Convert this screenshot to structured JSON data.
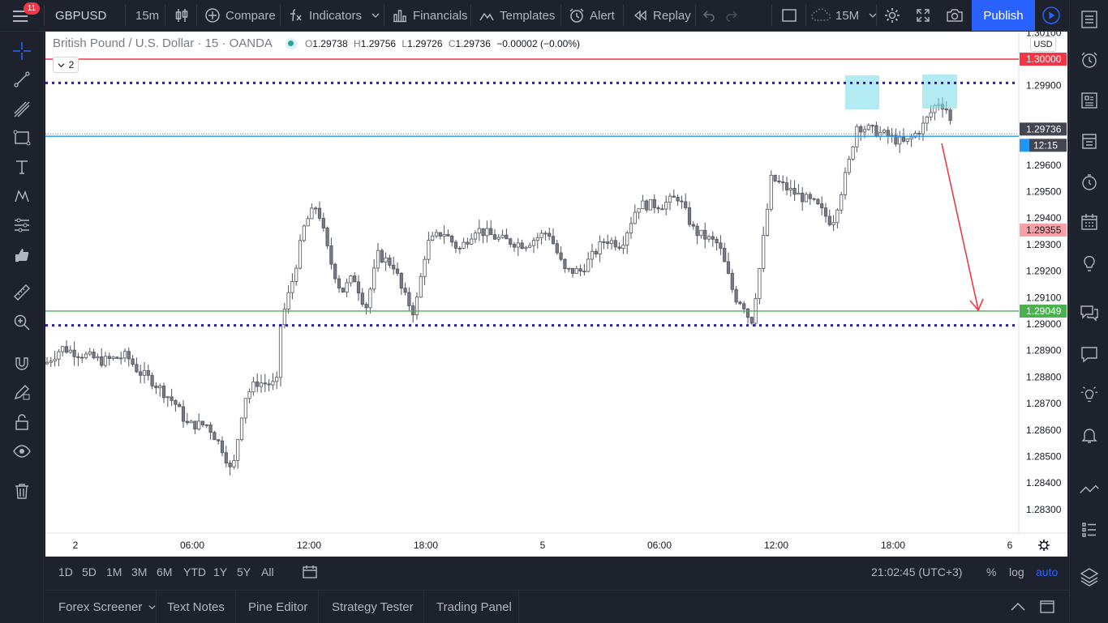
{
  "toolbar": {
    "notification_count": "11",
    "symbol": "GBPUSD",
    "interval": "15m",
    "compare": "Compare",
    "indicators": "Indicators",
    "financials": "Financials",
    "templates": "Templates",
    "alert": "Alert",
    "replay": "Replay",
    "chart_interval": "15M",
    "publish": "Publish"
  },
  "legend": {
    "title": "British Pound / U.S. Dollar · 15 · OANDA",
    "o_key": "O",
    "o": "1.29738",
    "h_key": "H",
    "h": "1.29756",
    "l_key": "L",
    "l": "1.29726",
    "c_key": "C",
    "c": "1.29736",
    "change": "−0.00002 (−0.00%)",
    "collapsed_count": "2"
  },
  "chart_data": {
    "type": "candlestick",
    "currency": "USD",
    "price_ticks": [
      "1.30100",
      "1.29900",
      "1.29600",
      "1.29500",
      "1.29400",
      "1.29300",
      "1.29200",
      "1.29100",
      "1.29000",
      "1.28900",
      "1.28800",
      "1.28700",
      "1.28600",
      "1.28500",
      "1.28400",
      "1.28300"
    ],
    "time_ticks": [
      "2",
      "06:00",
      "12:00",
      "18:00",
      "5",
      "06:00",
      "12:00",
      "18:00",
      "6"
    ],
    "price_labels": {
      "resistance": "1.30000",
      "last": "1.29736",
      "countdown": "12:15",
      "marker": "1.29355",
      "support": "1.29049"
    },
    "levels": [
      {
        "name": "resistance-line",
        "price": 1.3,
        "color": "#f23645"
      },
      {
        "name": "top-dotted-line",
        "price": 1.2991,
        "color": "#311b92"
      },
      {
        "name": "support-line",
        "price": 1.29049,
        "color": "#4caf50"
      },
      {
        "name": "bottom-dotted-line",
        "price": 1.28995,
        "color": "#311b92"
      }
    ]
  },
  "bottom": {
    "ranges": [
      "1D",
      "5D",
      "1M",
      "3M",
      "6M",
      "YTD",
      "1Y",
      "5Y",
      "All"
    ],
    "time": "21:02:45 (UTC+3)",
    "percent": "%",
    "log": "log",
    "auto": "auto"
  },
  "panels": {
    "forex_screener": "Forex Screener",
    "text_notes": "Text Notes",
    "pine_editor": "Pine Editor",
    "strategy_tester": "Strategy Tester",
    "trading_panel": "Trading Panel"
  },
  "colors": {
    "accent": "#2962ff",
    "up": "#ffffff",
    "down": "#787b86",
    "red": "#f23645",
    "green": "#4caf50",
    "blue": "#2196f3"
  }
}
